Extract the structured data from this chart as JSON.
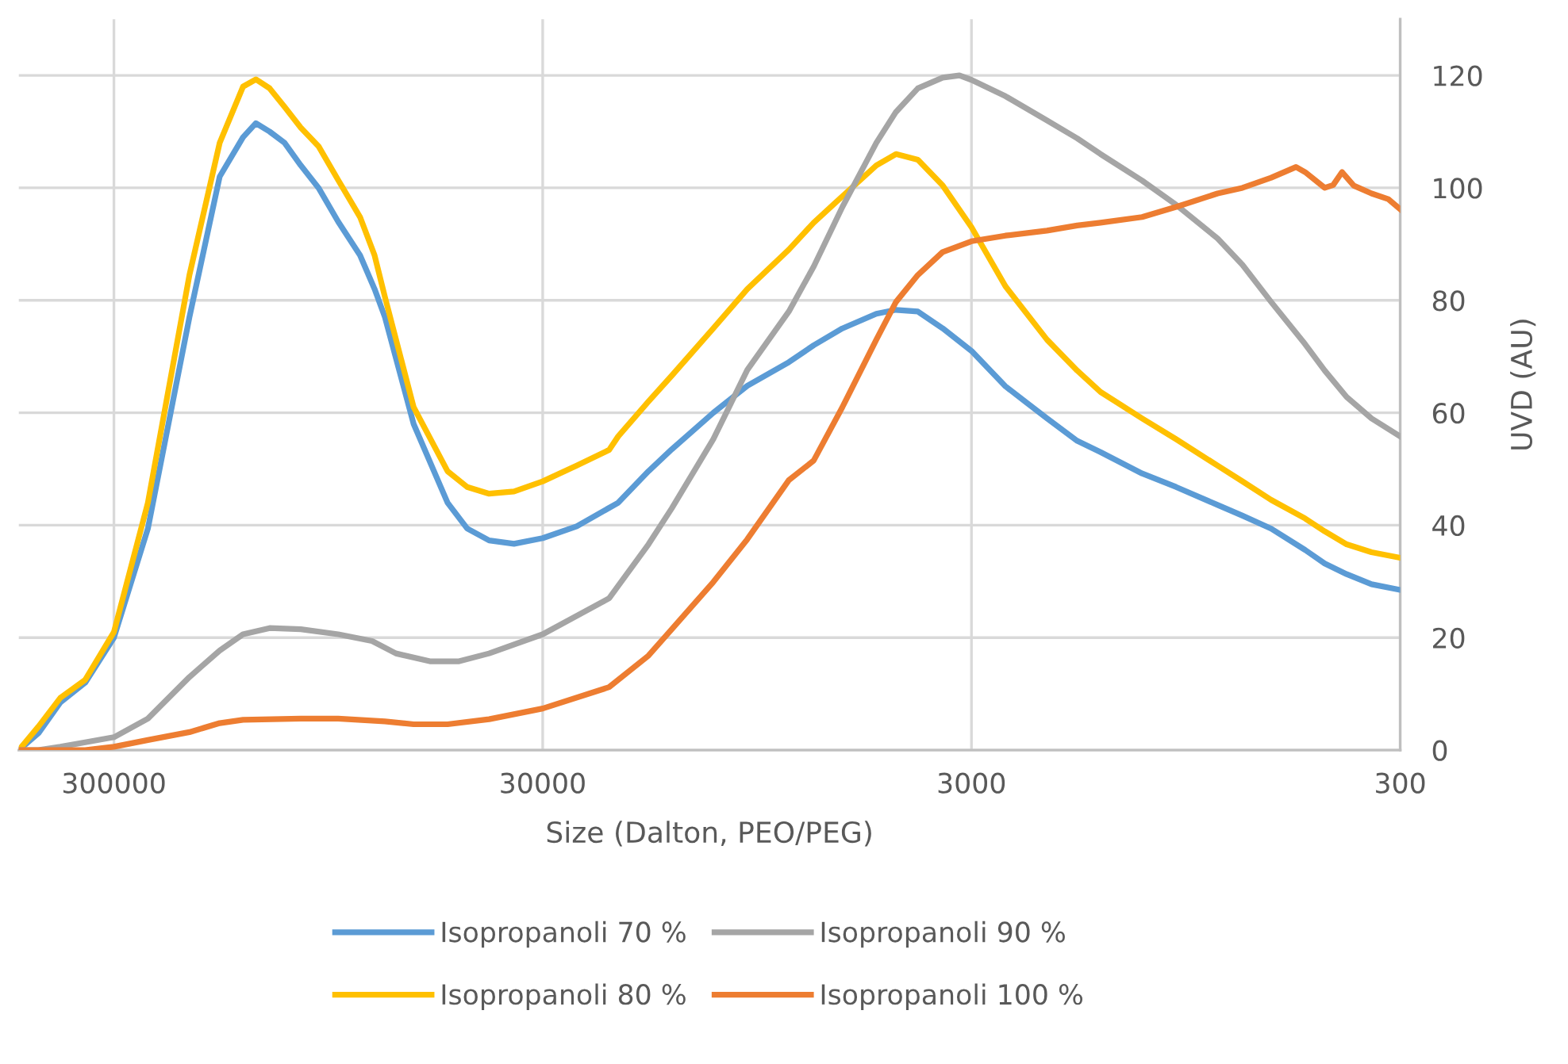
{
  "chart_data": {
    "type": "line",
    "xlabel": "Size (Dalton, PEO/PEG)",
    "ylabel": "UVD (AU)",
    "log": "x",
    "xlim": [
      500000,
      300
    ],
    "xticks": [
      300000,
      30000,
      3000,
      300
    ],
    "ylim": [
      0,
      130
    ],
    "yticks": [
      0,
      20,
      40,
      60,
      80,
      100,
      120
    ],
    "grid": true,
    "legend": "bottom",
    "marker": "none",
    "line_style": "solid",
    "series": [
      {
        "name": "Isopropanoli 70 %",
        "color": "#5b9bd5",
        "x": [
          500000,
          450000,
          400000,
          350000,
          300000,
          250000,
          200000,
          170000,
          150000,
          140000,
          130000,
          120000,
          110000,
          100000,
          90000,
          80000,
          74000,
          70000,
          60000,
          50000,
          45000,
          40000,
          35000,
          30000,
          25000,
          20000,
          17000,
          15000,
          12000,
          10000,
          8000,
          7000,
          6000,
          5000,
          4500,
          4000,
          3500,
          3000,
          2500,
          2000,
          1700,
          1500,
          1200,
          1000,
          800,
          700,
          600,
          500,
          450,
          400,
          350,
          300
        ],
        "values": [
          0,
          3,
          8.5,
          12,
          20,
          39.4,
          77,
          102,
          109,
          111.5,
          110,
          108,
          104,
          100,
          94,
          88,
          82,
          77,
          58,
          44,
          39.4,
          37.3,
          36.7,
          37.7,
          39.8,
          44,
          49.6,
          53.5,
          60,
          64.8,
          69,
          72,
          75,
          77.6,
          78.3,
          78,
          75,
          71,
          64.7,
          59,
          55,
          53,
          49.2,
          46.8,
          43.6,
          41.7,
          39.4,
          35.6,
          33.2,
          31.3,
          29.5,
          28.5
        ]
      },
      {
        "name": "Isopropanoli 80 %",
        "color": "#ffc000",
        "x": [
          500000,
          450000,
          400000,
          350000,
          300000,
          250000,
          200000,
          170000,
          150000,
          140000,
          130000,
          120000,
          110000,
          100000,
          90000,
          80000,
          74000,
          70000,
          60000,
          50000,
          45000,
          40000,
          35000,
          30000,
          25000,
          21000,
          20000,
          17000,
          15000,
          12000,
          10000,
          8000,
          7000,
          6000,
          5000,
          4500,
          4000,
          3500,
          3000,
          2500,
          2000,
          1700,
          1500,
          1200,
          1000,
          800,
          700,
          600,
          500,
          450,
          400,
          350,
          300
        ],
        "values": [
          0,
          4.2,
          9.3,
          12.5,
          21,
          44,
          84.5,
          108,
          118,
          119.3,
          117.7,
          114.4,
          110.7,
          107.4,
          101.4,
          94.8,
          88,
          80.6,
          61,
          49.6,
          46.8,
          45.6,
          46,
          47.8,
          50.6,
          53.4,
          55.8,
          62,
          66.6,
          75,
          82,
          89,
          93.8,
          98.5,
          104,
          106,
          105,
          100.4,
          93,
          82.5,
          73,
          67.5,
          63.7,
          59,
          55.3,
          50.6,
          47.8,
          44.5,
          41.2,
          38.9,
          36.6,
          35.2,
          34.2
        ]
      },
      {
        "name": "Isopropanoli 90 %",
        "color": "#a5a5a5",
        "x": [
          500000,
          450000,
          400000,
          350000,
          300000,
          250000,
          200000,
          170000,
          150000,
          130000,
          110000,
          90000,
          75000,
          66000,
          55000,
          47000,
          40000,
          30000,
          21000,
          17000,
          15000,
          12000,
          10000,
          8000,
          7000,
          6000,
          5000,
          4500,
          4000,
          3500,
          3200,
          3000,
          2500,
          2000,
          1700,
          1500,
          1200,
          1000,
          800,
          700,
          600,
          500,
          450,
          400,
          350,
          300
        ],
        "values": [
          0,
          0,
          0.6,
          1.4,
          2.3,
          5.6,
          13,
          17.7,
          20.6,
          21.7,
          21.5,
          20.6,
          19.4,
          17.2,
          15.8,
          15.8,
          17.2,
          20.6,
          27,
          36.6,
          43,
          55.3,
          67.6,
          78,
          86,
          96.6,
          108,
          113.5,
          117.7,
          119.6,
          120,
          119.2,
          116.3,
          112,
          108.8,
          106,
          101.3,
          97,
          91,
          86.3,
          79.7,
          72.2,
          67.5,
          62.8,
          59,
          55.8
        ]
      },
      {
        "name": "Isopropanoli 100 %",
        "color": "#ed7d31",
        "x": [
          500000,
          350000,
          300000,
          250000,
          200000,
          170000,
          150000,
          110000,
          90000,
          70000,
          60000,
          50000,
          40000,
          30000,
          21000,
          17000,
          15000,
          12000,
          10000,
          8000,
          7000,
          6000,
          5000,
          4500,
          4000,
          3500,
          3000,
          2500,
          2000,
          1700,
          1500,
          1200,
          1000,
          800,
          700,
          600,
          525,
          500,
          450,
          430,
          410,
          385,
          350,
          320,
          300
        ],
        "values": [
          0,
          0,
          0.6,
          1.8,
          3.2,
          4.8,
          5.4,
          5.6,
          5.6,
          5.1,
          4.6,
          4.6,
          5.5,
          7.4,
          11.2,
          16.8,
          21.5,
          29.9,
          37.5,
          48,
          51.5,
          61,
          73,
          79.7,
          84.5,
          88.6,
          90.5,
          91.5,
          92.4,
          93.3,
          93.8,
          94.8,
          96.6,
          99,
          100,
          101.8,
          103.7,
          102.8,
          100,
          100.5,
          102.8,
          100.4,
          99,
          98,
          96.2
        ]
      }
    ]
  }
}
